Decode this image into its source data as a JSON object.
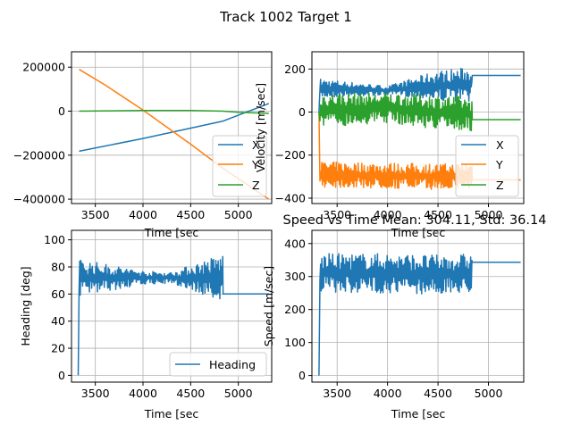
{
  "figure_title": "Track 1002 Target 1",
  "colors": {
    "blue": "#1f77b4",
    "orange": "#ff7f0e",
    "green": "#2ca02c",
    "grid": "#b0b0b0"
  },
  "chart_data": [
    {
      "id": "position",
      "type": "line",
      "title": "",
      "xlabel": "Time [sec",
      "ylabel": "",
      "xlim": [
        3250,
        5350
      ],
      "ylim": [
        -420000,
        270000
      ],
      "xticks": [
        3500,
        4000,
        4500,
        5000
      ],
      "xtick_labels": [
        "3500",
        "4000",
        "4500",
        "5000"
      ],
      "yticks": [
        -400000,
        -200000,
        0,
        200000
      ],
      "ytick_labels": [
        "−400000",
        "−200000",
        "0",
        "200000"
      ],
      "grid": true,
      "legend_position": "lower-right",
      "series": [
        {
          "name": "X",
          "color": "#1f77b4",
          "x": [
            3330,
            4000,
            4840,
            5320
          ],
          "y": [
            -182000,
            -124000,
            -45000,
            35000
          ]
        },
        {
          "name": "Y",
          "color": "#ff7f0e",
          "x": [
            3330,
            3600,
            4000,
            4500,
            4840,
            5320
          ],
          "y": [
            190000,
            120000,
            5000,
            -150000,
            -260000,
            -400000
          ]
        },
        {
          "name": "Z",
          "color": "#2ca02c",
          "x": [
            3330,
            4000,
            4500,
            4840,
            5000,
            5320
          ],
          "y": [
            0,
            3000,
            3000,
            0,
            -5000,
            -10000
          ]
        }
      ]
    },
    {
      "id": "velocity",
      "type": "line",
      "title": "",
      "xlabel": "Time [sec",
      "ylabel": "Velocity [m/sec]",
      "xlim": [
        3250,
        5350
      ],
      "ylim": [
        -425,
        280
      ],
      "xticks": [
        3500,
        4000,
        4500,
        5000
      ],
      "xtick_labels": [
        "3500",
        "4000",
        "4500",
        "5000"
      ],
      "yticks": [
        -400,
        -200,
        0,
        200
      ],
      "ytick_labels": [
        "−400",
        "−200",
        "0",
        "200"
      ],
      "grid": true,
      "legend_position": "lower-right",
      "series": [
        {
          "name": "X",
          "color": "#1f77b4",
          "start": [
            3320,
            0
          ],
          "mean_points": [
            [
              3330,
              110
            ],
            [
              3700,
              105
            ],
            [
              4000,
              100
            ],
            [
              4400,
              120
            ],
            [
              4840,
              130
            ]
          ],
          "noise_amplitude": [
            [
              3330,
              45
            ],
            [
              4000,
              20
            ],
            [
              4500,
              70
            ],
            [
              4840,
              80
            ]
          ],
          "end": [
            [
              4840,
              170
            ],
            [
              5320,
              170
            ]
          ]
        },
        {
          "name": "Y",
          "color": "#ff7f0e",
          "start": [
            3320,
            0
          ],
          "mean_points": [
            [
              3330,
              -290
            ],
            [
              4000,
              -295
            ],
            [
              4500,
              -300
            ],
            [
              4840,
              -295
            ]
          ],
          "noise_amplitude": [
            [
              3330,
              60
            ],
            [
              4000,
              60
            ],
            [
              4840,
              60
            ]
          ],
          "end": [
            [
              4840,
              -315
            ],
            [
              5320,
              -315
            ]
          ]
        },
        {
          "name": "Z",
          "color": "#2ca02c",
          "start": [
            3320,
            0
          ],
          "mean_points": [
            [
              3330,
              10
            ],
            [
              4000,
              20
            ],
            [
              4500,
              0
            ],
            [
              4840,
              -10
            ]
          ],
          "noise_amplitude": [
            [
              3330,
              80
            ],
            [
              4000,
              70
            ],
            [
              4500,
              80
            ],
            [
              4840,
              80
            ]
          ],
          "end": [
            [
              4840,
              -35
            ],
            [
              5320,
              -35
            ]
          ]
        }
      ]
    },
    {
      "id": "heading",
      "type": "line",
      "title": "",
      "xlabel": "Time [sec",
      "ylabel": "Heading [deg]",
      "xlim": [
        3250,
        5350
      ],
      "ylim": [
        -5,
        107
      ],
      "xticks": [
        3500,
        4000,
        4500,
        5000
      ],
      "xtick_labels": [
        "3500",
        "4000",
        "4500",
        "5000"
      ],
      "yticks": [
        0,
        20,
        40,
        60,
        80,
        100
      ],
      "ytick_labels": [
        "0",
        "20",
        "40",
        "60",
        "80",
        "100"
      ],
      "grid": true,
      "legend_position": "lower-right",
      "series": [
        {
          "name": "Heading",
          "color": "#1f77b4",
          "start": [
            3320,
            0
          ],
          "mean_points": [
            [
              3330,
              72
            ],
            [
              3800,
              72
            ],
            [
              4200,
              72
            ],
            [
              4500,
              72
            ],
            [
              4840,
              72
            ]
          ],
          "noise_amplitude": [
            [
              3330,
              14
            ],
            [
              4000,
              5
            ],
            [
              4300,
              4
            ],
            [
              4600,
              12
            ],
            [
              4840,
              18
            ]
          ],
          "end": [
            [
              4840,
              60
            ],
            [
              5320,
              60
            ]
          ]
        }
      ]
    },
    {
      "id": "speed",
      "type": "line",
      "title": "Speed vs Time Mean: 304.11, Std: 36.14",
      "xlabel": "Time [sec",
      "ylabel": "Speed [m/sec]",
      "xlim": [
        3250,
        5350
      ],
      "ylim": [
        -20,
        440
      ],
      "xticks": [
        3500,
        4000,
        4500,
        5000
      ],
      "xtick_labels": [
        "3500",
        "4000",
        "4500",
        "5000"
      ],
      "yticks": [
        0,
        100,
        200,
        300,
        400
      ],
      "ytick_labels": [
        "0",
        "100",
        "200",
        "300",
        "400"
      ],
      "grid": true,
      "legend_position": "none",
      "series": [
        {
          "name": "",
          "color": "#1f77b4",
          "start": [
            3320,
            0
          ],
          "mean_points": [
            [
              3330,
              310
            ],
            [
              4000,
              310
            ],
            [
              4500,
              305
            ],
            [
              4840,
              310
            ]
          ],
          "noise_amplitude": [
            [
              3330,
              60
            ],
            [
              4000,
              60
            ],
            [
              4840,
              60
            ]
          ],
          "end": [
            [
              4840,
              343
            ],
            [
              5320,
              343
            ]
          ]
        }
      ]
    }
  ]
}
